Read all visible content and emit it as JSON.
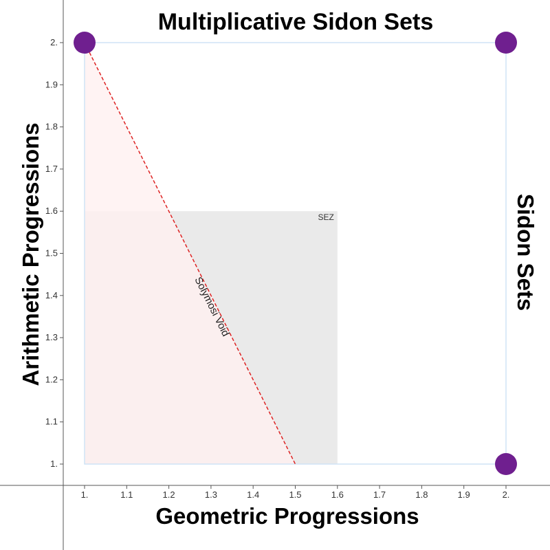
{
  "chart_data": {
    "type": "scatter",
    "title": "Multiplicative Sidon Sets",
    "xlabel": "Geometric Progressions",
    "ylabel": "Arithmetic Progressions",
    "right_label": "Sidon Sets",
    "xlim": [
      1,
      2
    ],
    "ylim": [
      1,
      2
    ],
    "x_ticks": [
      "1.",
      "1.1",
      "1.2",
      "1.3",
      "1.4",
      "1.5",
      "1.6",
      "1.7",
      "1.8",
      "1.9",
      "2."
    ],
    "y_ticks": [
      "1.",
      "1.1",
      "1.2",
      "1.3",
      "1.4",
      "1.5",
      "1.6",
      "1.7",
      "1.8",
      "1.9",
      "2."
    ],
    "points": [
      {
        "x": 1,
        "y": 2
      },
      {
        "x": 2,
        "y": 2
      },
      {
        "x": 2,
        "y": 1
      }
    ],
    "regions": [
      {
        "label": "SEZ",
        "x": [
          1,
          1.6
        ],
        "y": [
          1,
          1.6
        ],
        "color": "#e6e6e6"
      },
      {
        "label": "",
        "polygon": [
          [
            1,
            2
          ],
          [
            1.5,
            1
          ],
          [
            1,
            1
          ]
        ],
        "color": "#fff0f0"
      }
    ],
    "line": {
      "label": "Solymosi Void",
      "from": [
        1,
        2
      ],
      "to": [
        1.5,
        1
      ],
      "color": "#dd2222"
    },
    "frame": {
      "x": [
        1,
        2
      ],
      "y": [
        1,
        2
      ],
      "color": "#cfe3f5"
    },
    "point_color": "#6f1f8f",
    "grid": false
  }
}
